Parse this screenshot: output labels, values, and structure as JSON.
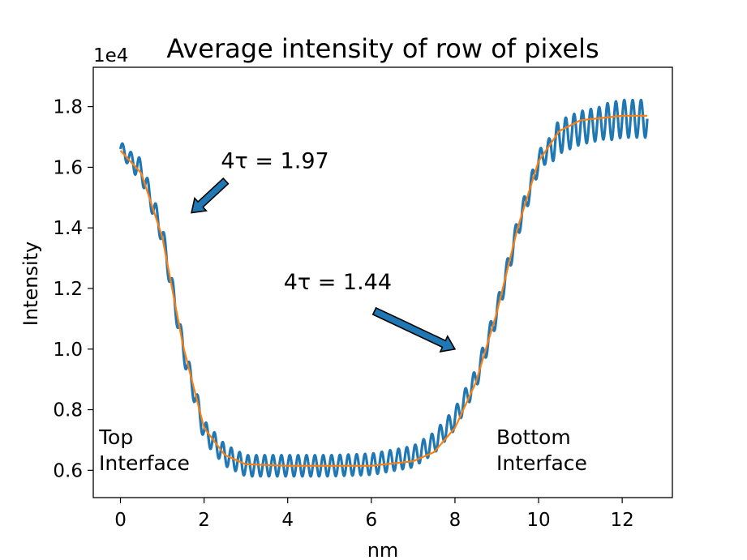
{
  "chart_data": {
    "type": "line",
    "title": "Average intensity of row of pixels",
    "xlabel": "nm",
    "ylabel": "Intensity",
    "y_offset_label": "1e4",
    "xlim": [
      -0.65,
      13.2
    ],
    "ylim": [
      5100,
      19300
    ],
    "x_ticks": [
      0,
      2,
      4,
      6,
      8,
      10,
      12
    ],
    "x_tick_labels": [
      "0",
      "2",
      "4",
      "6",
      "8",
      "10",
      "12"
    ],
    "y_ticks": [
      6000,
      8000,
      10000,
      12000,
      14000,
      16000,
      18000
    ],
    "y_tick_labels": [
      "0.6",
      "0.8",
      "1.0",
      "1.2",
      "1.4",
      "1.6",
      "1.8"
    ],
    "grid": false,
    "colors": {
      "data": "#1f77b4",
      "fit": "#ff7f0e",
      "arrow": "#1f77b4"
    },
    "series": [
      {
        "role": "measured",
        "x": [
          0,
          0.5,
          1.0,
          1.5,
          2.0,
          2.5,
          3,
          4,
          5,
          6,
          7,
          7.5,
          8.0,
          8.5,
          9.0,
          9.5,
          10.0,
          10.5,
          11,
          12,
          12.6
        ],
        "y": [
          16600,
          15900,
          13800,
          10000,
          7300,
          6500,
          6150,
          6150,
          6150,
          6200,
          6450,
          6900,
          7700,
          9000,
          11200,
          14000,
          16200,
          17000,
          17300,
          17600,
          17600
        ]
      },
      {
        "role": "fit",
        "x": [
          0,
          0.5,
          1.0,
          1.5,
          2.0,
          2.5,
          3,
          4,
          5,
          6,
          7,
          7.5,
          8.0,
          8.5,
          9.0,
          9.5,
          10.0,
          10.5,
          11,
          12,
          12.6
        ],
        "y": [
          16550,
          15800,
          13700,
          10100,
          7400,
          6500,
          6200,
          6150,
          6150,
          6150,
          6300,
          6600,
          7400,
          8900,
          11200,
          14000,
          16200,
          17200,
          17550,
          17700,
          17700
        ]
      }
    ],
    "annotations": [
      {
        "text": "4τ = 1.97",
        "x": 2.5,
        "y": 16000,
        "arrow_to": [
          1.7,
          14500
        ]
      },
      {
        "text": "4τ = 1.44",
        "x": 4.0,
        "y": 12000,
        "arrow_to": [
          8.0,
          10000
        ]
      }
    ],
    "side_labels": [
      {
        "lines": [
          "Top",
          "Interface"
        ]
      },
      {
        "lines": [
          "Bottom",
          "Interface"
        ]
      }
    ]
  }
}
